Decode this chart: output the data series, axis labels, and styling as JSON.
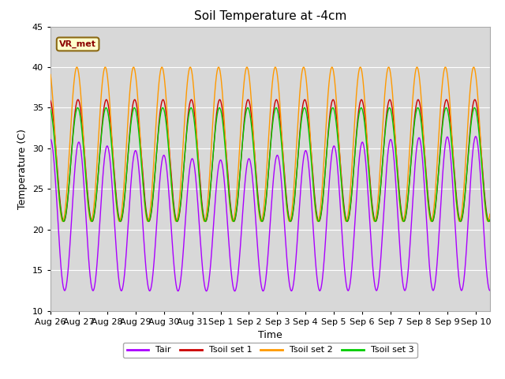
{
  "title": "Soil Temperature at -4cm",
  "xlabel": "Time",
  "ylabel": "Temperature (C)",
  "ylim": [
    10,
    45
  ],
  "yticks": [
    10,
    15,
    20,
    25,
    30,
    35,
    40,
    45
  ],
  "fig_bg_color": "#ffffff",
  "plot_bg_color": "#d8d8d8",
  "colors": {
    "Tair": "#aa00ff",
    "Tsoil set 1": "#cc0000",
    "Tsoil set 2": "#ff9900",
    "Tsoil set 3": "#00cc00"
  },
  "legend_labels": [
    "Tair",
    "Tsoil set 1",
    "Tsoil set 2",
    "Tsoil set 3"
  ],
  "annotation_text": "VR_met",
  "n_days": 15.5,
  "points_per_day": 144
}
